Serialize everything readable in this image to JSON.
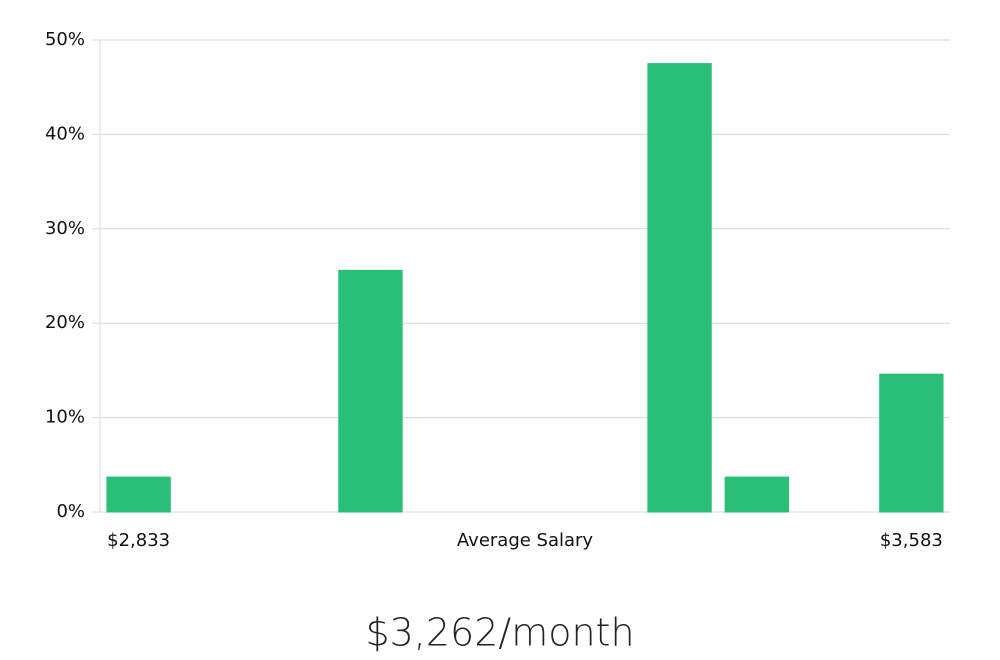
{
  "chart_data": {
    "type": "bar",
    "categories": [
      "$2,833",
      null,
      null,
      null,
      null,
      null,
      null,
      null,
      null,
      null,
      "$3,583"
    ],
    "values": [
      3.7,
      0,
      0,
      25.6,
      0,
      0,
      0,
      47.5,
      3.7,
      0,
      14.6
    ],
    "colors": [
      "#2abf76",
      "#2abf76",
      "#2abf76",
      "#2abf76",
      "#2abf76",
      "#2abf76",
      "#1a1a2e",
      "#2abf76",
      "#2abf76",
      "#2abf76",
      "#2abf76"
    ],
    "x_label": "Average Salary",
    "headline": "$3,262/month",
    "ylim": [
      0,
      50
    ],
    "yticks": [
      {
        "value": 0,
        "label": "0%"
      },
      {
        "value": 10,
        "label": "10%"
      },
      {
        "value": 20,
        "label": "20%"
      },
      {
        "value": 30,
        "label": "30%"
      },
      {
        "value": 40,
        "label": "40%"
      },
      {
        "value": 50,
        "label": "50%"
      }
    ],
    "grid": true
  }
}
